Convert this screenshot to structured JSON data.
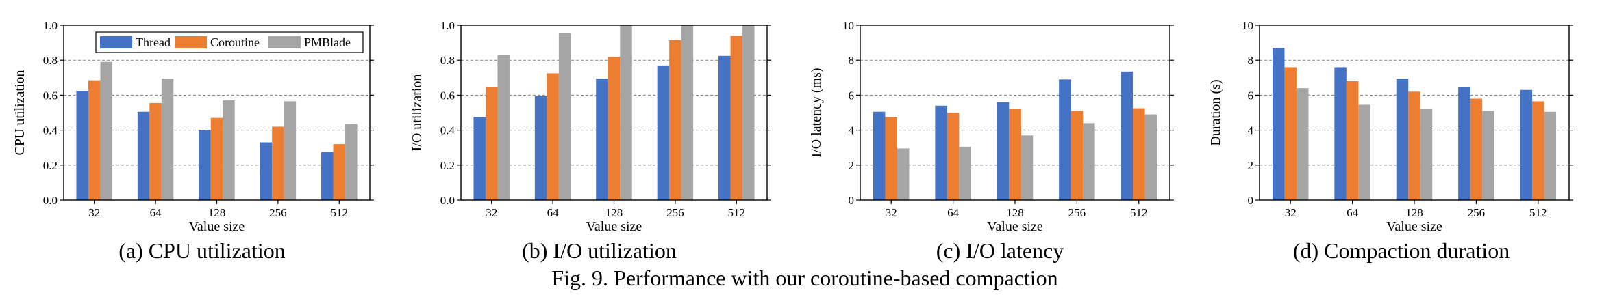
{
  "figure": {
    "caption": "Fig. 9.  Performance with our coroutine-based compaction"
  },
  "colors": {
    "Thread": "#4472C4",
    "Coroutine": "#ED7D31",
    "PMBlade": "#A5A5A5"
  },
  "chart_data": [
    {
      "type": "bar",
      "caption": "(a)  CPU utilization",
      "xlabel": "Value size",
      "ylabel": "CPU utilization",
      "categories": [
        "32",
        "64",
        "128",
        "256",
        "512"
      ],
      "ylim": [
        0,
        1.0
      ],
      "yticks": [
        "0.0",
        "0.2",
        "0.4",
        "0.6",
        "0.8",
        "1.0"
      ],
      "grid": true,
      "legend": "top",
      "series": [
        {
          "name": "Thread",
          "values": [
            0.625,
            0.505,
            0.4,
            0.33,
            0.275
          ]
        },
        {
          "name": "Coroutine",
          "values": [
            0.685,
            0.555,
            0.47,
            0.42,
            0.32
          ]
        },
        {
          "name": "PMBlade",
          "values": [
            0.79,
            0.695,
            0.57,
            0.565,
            0.435
          ]
        }
      ]
    },
    {
      "type": "bar",
      "caption": "(b)  I/O utilization",
      "xlabel": "Value size",
      "ylabel": "I/O utilization",
      "categories": [
        "32",
        "64",
        "128",
        "256",
        "512"
      ],
      "ylim": [
        0,
        1.0
      ],
      "yticks": [
        "0.0",
        "0.2",
        "0.4",
        "0.6",
        "0.8",
        "1.0"
      ],
      "grid": true,
      "series": [
        {
          "name": "Thread",
          "values": [
            0.475,
            0.595,
            0.695,
            0.77,
            0.825
          ]
        },
        {
          "name": "Coroutine",
          "values": [
            0.645,
            0.725,
            0.82,
            0.915,
            0.94
          ]
        },
        {
          "name": "PMBlade",
          "values": [
            0.83,
            0.955,
            1.0,
            1.0,
            1.0
          ]
        }
      ]
    },
    {
      "type": "bar",
      "caption": "(c)  I/O latency",
      "xlabel": "Value size",
      "ylabel": "I/O latency (ms)",
      "categories": [
        "32",
        "64",
        "128",
        "256",
        "512"
      ],
      "ylim": [
        0,
        10
      ],
      "yticks": [
        "0",
        "2",
        "4",
        "6",
        "8",
        "10"
      ],
      "grid": true,
      "series": [
        {
          "name": "Thread",
          "values": [
            5.05,
            5.4,
            5.6,
            6.9,
            7.35
          ]
        },
        {
          "name": "Coroutine",
          "values": [
            4.75,
            5.0,
            5.2,
            5.1,
            5.25
          ]
        },
        {
          "name": "PMBlade",
          "values": [
            2.95,
            3.05,
            3.7,
            4.4,
            4.9
          ]
        }
      ]
    },
    {
      "type": "bar",
      "caption": "(d)  Compaction duration",
      "xlabel": "Value size",
      "ylabel": "Duration (s)",
      "categories": [
        "32",
        "64",
        "128",
        "256",
        "512"
      ],
      "ylim": [
        0,
        10
      ],
      "yticks": [
        "0",
        "2",
        "4",
        "6",
        "8",
        "10"
      ],
      "grid": true,
      "series": [
        {
          "name": "Thread",
          "values": [
            8.7,
            7.6,
            6.95,
            6.45,
            6.3
          ]
        },
        {
          "name": "Coroutine",
          "values": [
            7.6,
            6.8,
            6.2,
            5.8,
            5.65
          ]
        },
        {
          "name": "PMBlade",
          "values": [
            6.4,
            5.45,
            5.2,
            5.1,
            5.05
          ]
        }
      ]
    }
  ]
}
